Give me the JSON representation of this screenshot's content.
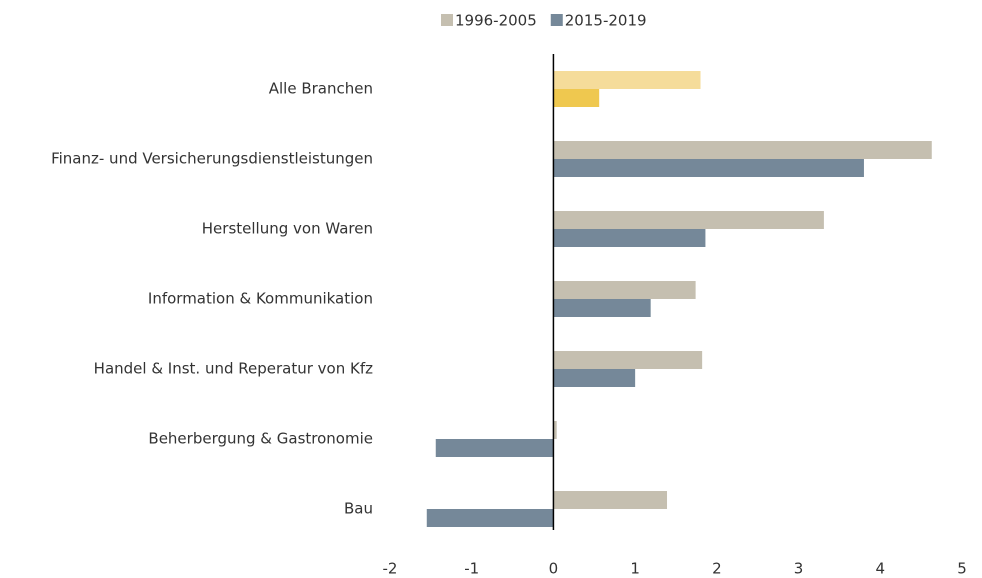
{
  "chart_data": {
    "type": "hbar",
    "categories": [
      "Alle Branchen",
      "Finanz- und Versicherungsdienstleistungen",
      "Herstellung von Waren",
      "Information & Kommunikation",
      "Handel & Inst. und Reperatur von Kfz",
      "Beherbergung & Gastronomie",
      "Bau"
    ],
    "series": [
      {
        "name": "1996-2005",
        "color": "#c5bfb0",
        "colors": [
          "#f5dc9a",
          "#c5bfb0",
          "#c5bfb0",
          "#c5bfb0",
          "#c5bfb0",
          "#c5bfb0",
          "#c5bfb0"
        ],
        "values": [
          1.8,
          4.63,
          3.31,
          1.74,
          1.82,
          0.04,
          1.39
        ]
      },
      {
        "name": "2015-2019",
        "color": "#758899",
        "colors": [
          "#efc84f",
          "#758899",
          "#758899",
          "#758899",
          "#758899",
          "#758899",
          "#758899"
        ],
        "values": [
          0.56,
          3.8,
          1.86,
          1.19,
          1.0,
          -1.44,
          -1.55
        ]
      }
    ],
    "xlim": [
      -2,
      5
    ],
    "xticks": [
      -2,
      -1,
      0,
      1,
      2,
      3,
      4,
      5
    ],
    "legend": "top"
  }
}
